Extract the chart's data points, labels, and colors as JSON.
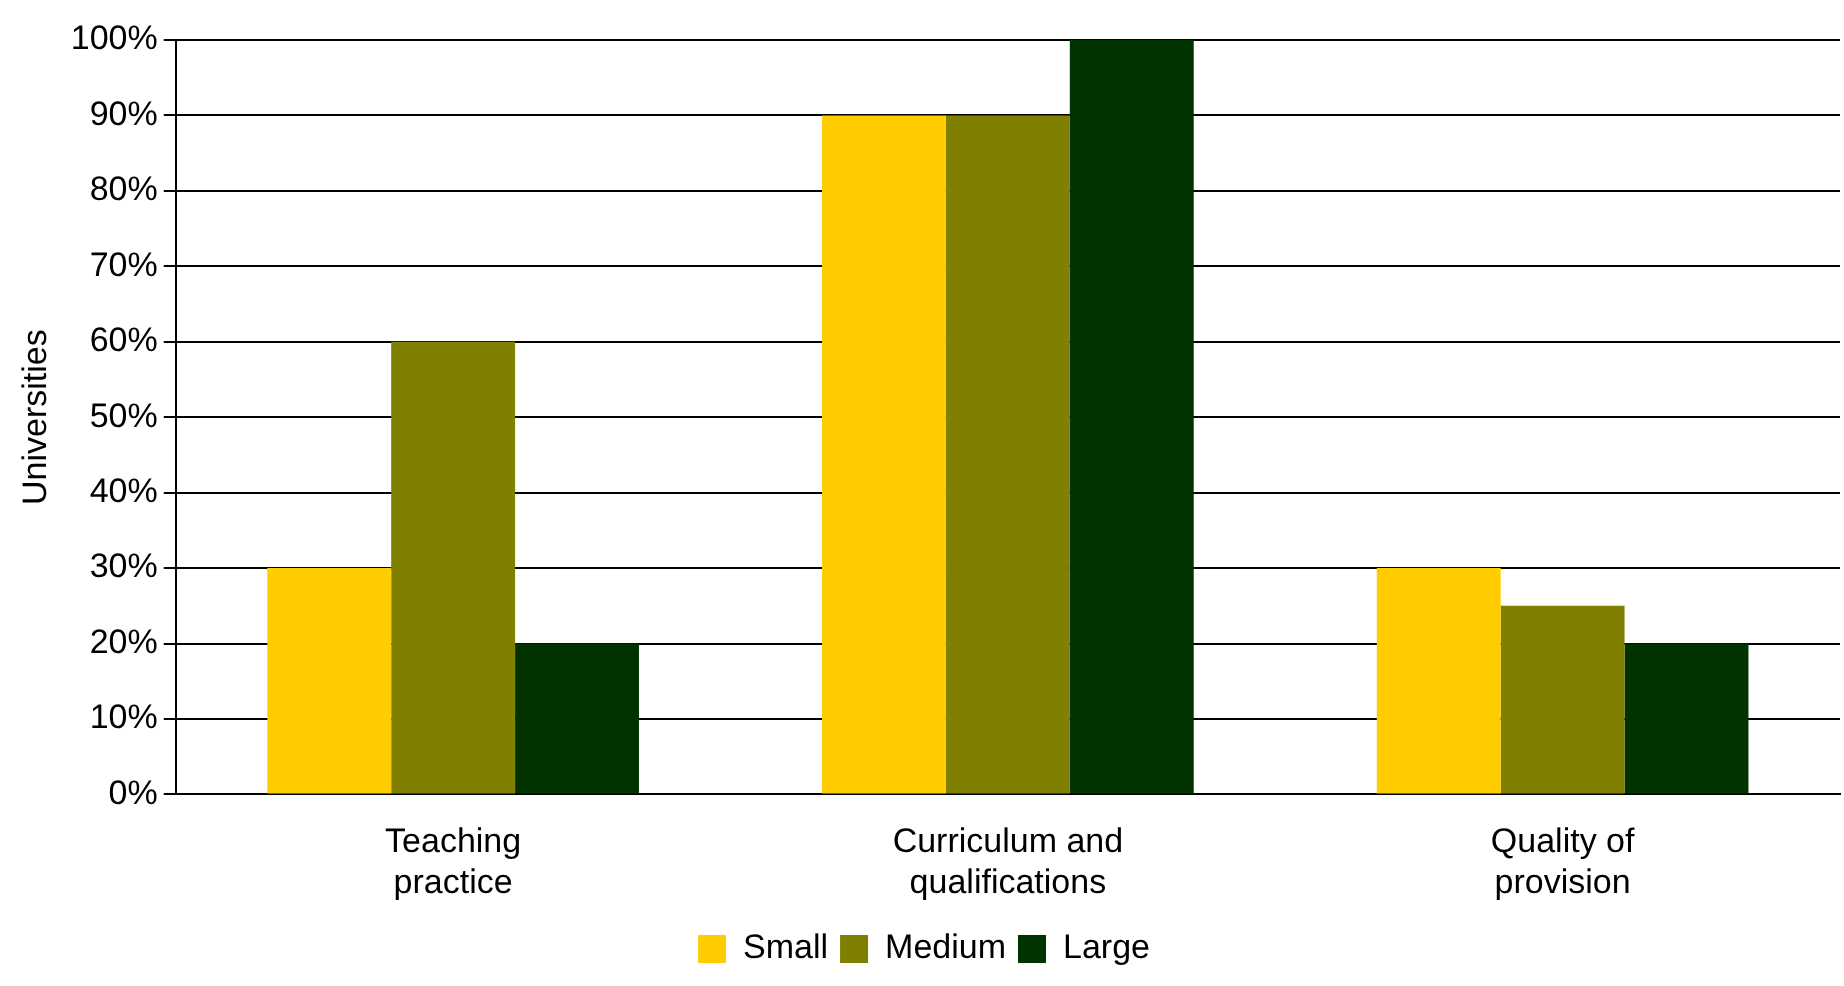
{
  "chart_data": {
    "type": "bar",
    "ylabel": "Universities",
    "categories": [
      "Teaching practice",
      "Curriculum and qualifications",
      "Quality of provision"
    ],
    "series": [
      {
        "name": "Small",
        "color": "#ffcc00",
        "values": [
          30,
          90,
          30
        ]
      },
      {
        "name": "Medium",
        "color": "#808000",
        "values": [
          60,
          90,
          25
        ]
      },
      {
        "name": "Large",
        "color": "#003300",
        "values": [
          20,
          100,
          20
        ]
      }
    ],
    "ylim": [
      0,
      100
    ],
    "yticks": [
      {
        "value": 0,
        "label": "0%"
      },
      {
        "value": 10,
        "label": "10%"
      },
      {
        "value": 20,
        "label": "20%"
      },
      {
        "value": 30,
        "label": "30%"
      },
      {
        "value": 40,
        "label": "40%"
      },
      {
        "value": 50,
        "label": "50%"
      },
      {
        "value": 60,
        "label": "60%"
      },
      {
        "value": 70,
        "label": "70%"
      },
      {
        "value": 80,
        "label": "80%"
      },
      {
        "value": 90,
        "label": "90%"
      },
      {
        "value": 100,
        "label": "100%"
      }
    ],
    "grid": "y",
    "legend": "bottom"
  }
}
